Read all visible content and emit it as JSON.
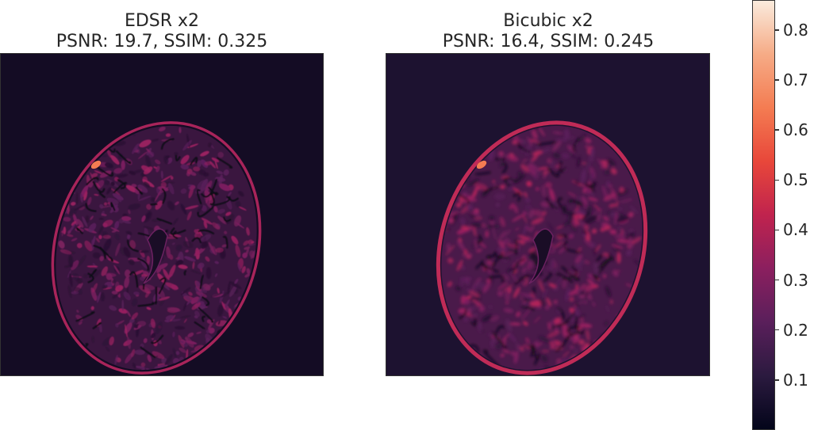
{
  "panels": [
    {
      "title_line1": "EDSR x2",
      "title_line2": "PSNR: 19.7, SSIM: 0.325",
      "method": "EDSR",
      "scale": "x2",
      "psnr": 19.7,
      "ssim": 0.325,
      "mean_error_level": 0.14
    },
    {
      "title_line1": "Bicubic x2",
      "title_line2": "PSNR: 16.4, SSIM: 0.245",
      "method": "Bicubic",
      "scale": "x2",
      "psnr": 16.4,
      "ssim": 0.245,
      "mean_error_level": 0.2
    }
  ],
  "colorbar": {
    "colormap": "rocket",
    "vmin": 0.0,
    "vmax": 0.86,
    "ticks": [
      {
        "value": 0.1,
        "label": "0.1"
      },
      {
        "value": 0.2,
        "label": "0.2"
      },
      {
        "value": 0.3,
        "label": "0.3"
      },
      {
        "value": 0.4,
        "label": "0.4"
      },
      {
        "value": 0.5,
        "label": "0.5"
      },
      {
        "value": 0.6,
        "label": "0.6"
      },
      {
        "value": 0.7,
        "label": "0.7"
      },
      {
        "value": 0.8,
        "label": "0.8"
      }
    ],
    "colors": [
      "#03051a",
      "#2b1a3f",
      "#5a1f5b",
      "#8b1f5f",
      "#c0234e",
      "#e8473a",
      "#f47c52",
      "#f6ab86",
      "#faebdd"
    ]
  },
  "chart_data": {
    "type": "heatmap",
    "subplots": [
      {
        "title": "EDSR x2\nPSNR: 19.7, SSIM: 0.325",
        "psnr": 19.7,
        "ssim": 0.325
      },
      {
        "title": "Bicubic x2\nPSNR: 16.4, SSIM: 0.245",
        "psnr": 16.4,
        "ssim": 0.245
      }
    ],
    "colorbar_range": [
      0.0,
      0.86
    ],
    "colorbar_ticks": [
      0.1,
      0.2,
      0.3,
      0.4,
      0.5,
      0.6,
      0.7,
      0.8
    ],
    "axes_ticks": "off",
    "grid": false
  }
}
